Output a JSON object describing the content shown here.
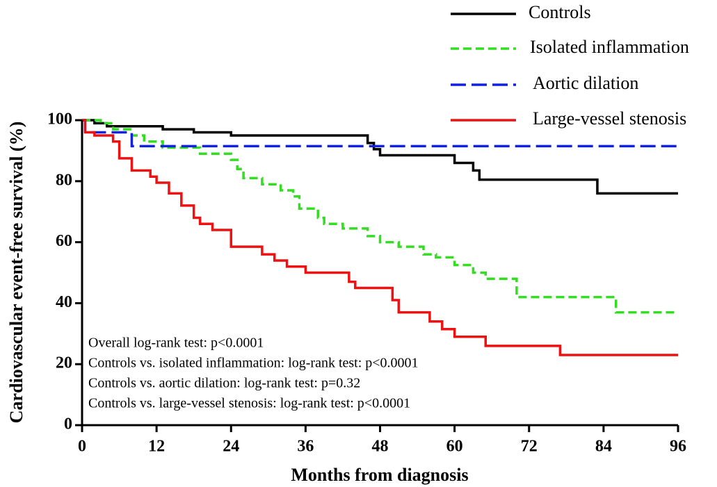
{
  "chart_data": {
    "type": "step",
    "xlabel": "Months from diagnosis",
    "ylabel": "Cardiovascular event-free survival (%)",
    "xlim": [
      0,
      96
    ],
    "xticks": [
      0,
      12,
      24,
      36,
      48,
      60,
      72,
      84,
      96
    ],
    "ylim": [
      0,
      100
    ],
    "yticks": [
      0,
      20,
      40,
      60,
      80,
      100
    ],
    "annotations": [
      "Overall log-rank test: p<0.0001",
      "Controls vs. isolated inflammation: log-rank test: p<0.0001",
      "Controls vs. aortic dilation: log-rank test: p=0.32",
      "Controls vs. large-vessel stenosis: log-rank test: p<0.0001"
    ],
    "series": [
      {
        "name": "Controls",
        "color": "#000000",
        "dash": "solid",
        "x": [
          0,
          2,
          4,
          13,
          18,
          24,
          46,
          47,
          48,
          60,
          63,
          64,
          83,
          96
        ],
        "values": [
          100,
          99,
          98,
          97,
          96,
          95,
          92.5,
          90.5,
          88.5,
          86,
          83.5,
          80.5,
          76,
          76
        ]
      },
      {
        "name": "Isolated inflammation",
        "color": "#33dd22",
        "dash": "short",
        "x": [
          0,
          3,
          5,
          8,
          10,
          13,
          19,
          24,
          25,
          26,
          29,
          32,
          34,
          35,
          38,
          39,
          42,
          46,
          48,
          51,
          55,
          57,
          60,
          63,
          65,
          70,
          86,
          96
        ],
        "values": [
          100,
          99,
          97,
          95,
          93,
          91,
          89,
          87,
          84,
          81,
          79,
          77,
          75,
          71,
          68,
          66,
          64.5,
          62,
          60,
          58.5,
          56,
          55,
          52.5,
          50,
          48,
          42,
          37,
          37
        ]
      },
      {
        "name": "Aortic dilation",
        "color": "#1122dd",
        "dash": "long",
        "x": [
          0,
          0.5,
          8,
          96
        ],
        "values": [
          100,
          96,
          91.5,
          91.5
        ]
      },
      {
        "name": "Large-vessel stenosis",
        "color": "#ee1111",
        "dash": "solid",
        "x": [
          0,
          0.5,
          2,
          5,
          6,
          8,
          11,
          12,
          14,
          16,
          18,
          19,
          21,
          24,
          29,
          31,
          33,
          36,
          43,
          44,
          50,
          51,
          56,
          58,
          60,
          65,
          77,
          96
        ],
        "values": [
          100,
          96,
          95,
          93,
          87.5,
          83.5,
          81.5,
          79.5,
          76,
          72,
          68,
          66,
          64,
          58.5,
          56,
          54,
          52,
          50,
          47,
          45,
          41,
          37,
          34,
          31.5,
          29,
          26,
          23,
          23
        ]
      }
    ]
  }
}
